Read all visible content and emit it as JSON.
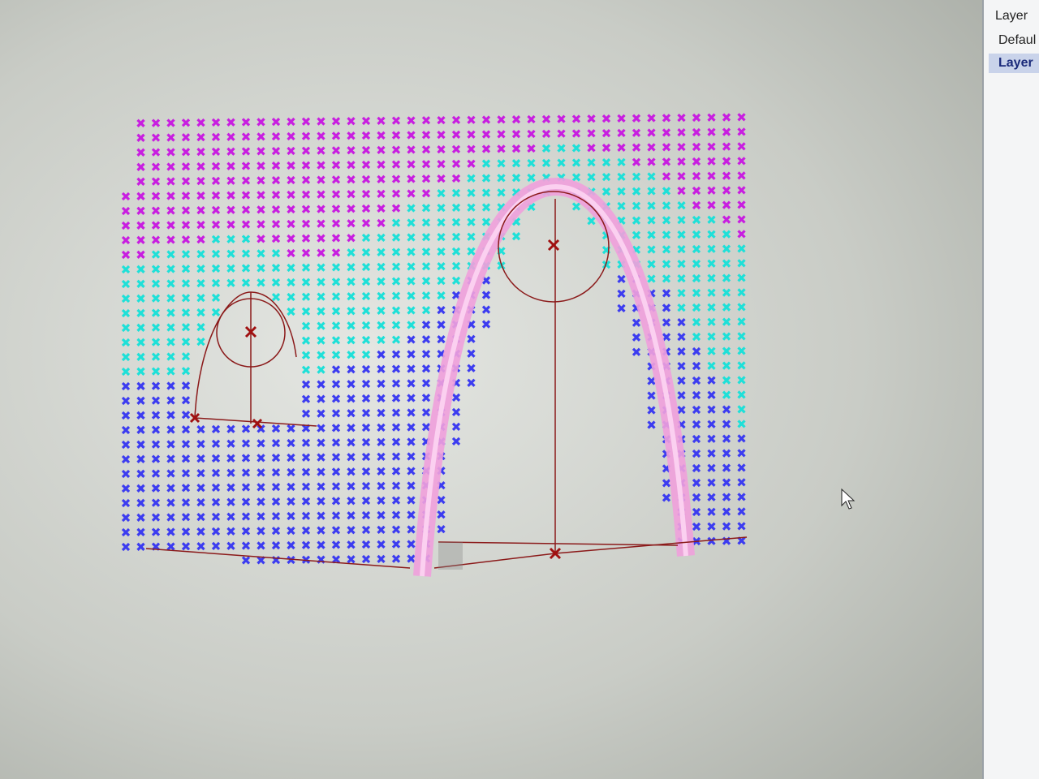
{
  "layer_panel": {
    "header": "Layer",
    "rows": [
      "Defaul",
      "Layer"
    ]
  }
}
